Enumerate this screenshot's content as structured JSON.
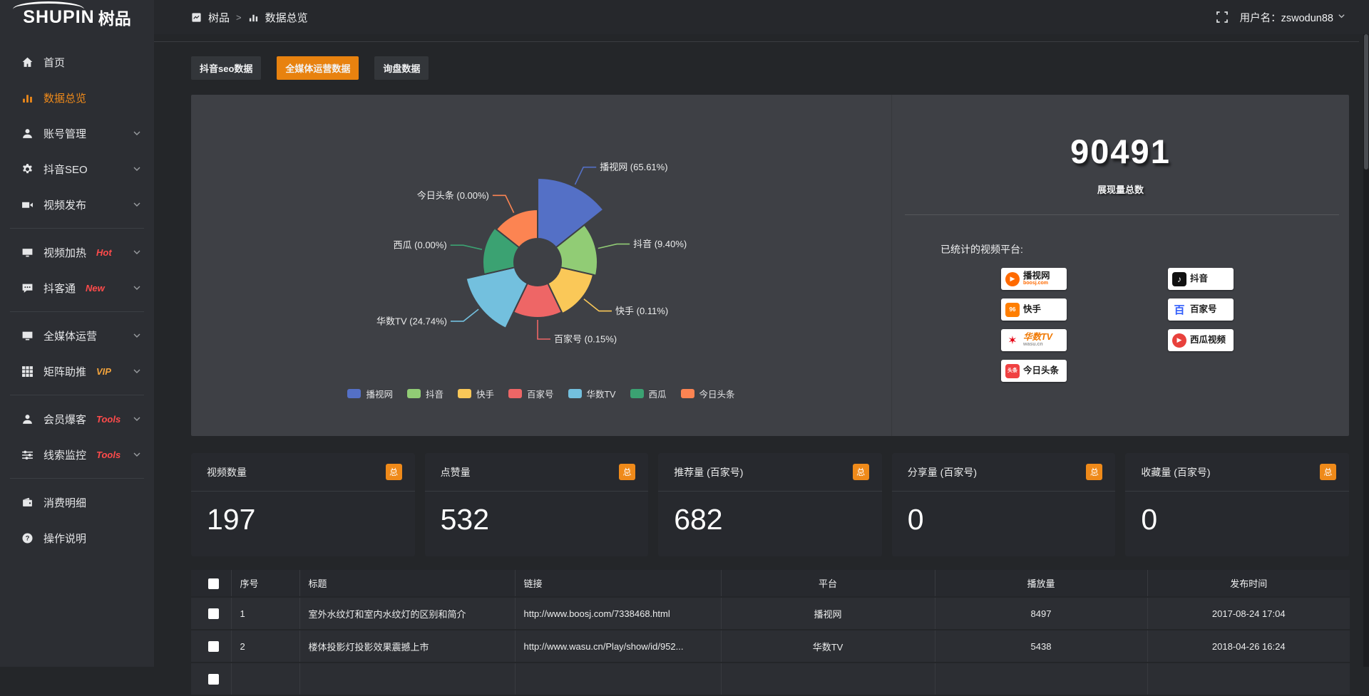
{
  "header": {
    "logo_en": "SHUPIN",
    "logo_cn": "树品",
    "breadcrumb": {
      "root": "树品",
      "separator": ">",
      "current": "数据总览"
    },
    "username": "用户名：zswodun88"
  },
  "sidebar": {
    "items": [
      {
        "key": "home",
        "icon": "home",
        "label": "首页"
      },
      {
        "key": "data-overview",
        "icon": "chart",
        "label": "数据总览",
        "active": true
      },
      {
        "key": "account-manage",
        "icon": "user",
        "label": "账号管理",
        "expandable": true
      },
      {
        "key": "douyin-seo",
        "icon": "gear",
        "label": "抖音SEO",
        "expandable": true
      },
      {
        "key": "video-publish",
        "icon": "camera",
        "label": "视频发布",
        "expandable": true
      },
      {
        "divider": true
      },
      {
        "key": "video-heat",
        "icon": "screen",
        "label": "视频加热",
        "badge": "Hot",
        "badge_color": "#ff4b4b",
        "expandable": true
      },
      {
        "key": "douketong",
        "icon": "chat",
        "label": "抖客通",
        "badge": "New",
        "badge_color": "#ff4b4b",
        "expandable": true
      },
      {
        "divider": true
      },
      {
        "key": "omni-media",
        "icon": "monitor",
        "label": "全媒体运营",
        "expandable": true
      },
      {
        "key": "matrix-boost",
        "icon": "grid",
        "label": "矩阵助推",
        "badge": "VIP",
        "badge_color": "#f2a33c",
        "expandable": true
      },
      {
        "divider": true
      },
      {
        "key": "member-burst",
        "icon": "person",
        "label": "会员爆客",
        "badge": "Tools",
        "badge_color": "#ff4b4b",
        "expandable": true
      },
      {
        "key": "clue-monitor",
        "icon": "sliders",
        "label": "线索监控",
        "badge": "Tools",
        "badge_color": "#ff4b4b",
        "expandable": true
      },
      {
        "divider": true
      },
      {
        "key": "spend-detail",
        "icon": "wallet",
        "label": "消费明细"
      },
      {
        "key": "help-doc",
        "icon": "help",
        "label": "操作说明"
      }
    ]
  },
  "tabs": [
    {
      "key": "douyin-seo-data",
      "label": "抖音seo数据"
    },
    {
      "key": "omni-media-data",
      "label": "全媒体运营数据",
      "active": true
    },
    {
      "key": "inquiry-data",
      "label": "询盘数据"
    }
  ],
  "chart_data": {
    "type": "pie",
    "rose": true,
    "equal_angle": true,
    "inner_radius": 33,
    "label_format": "{name} ({percent}%)",
    "slices": [
      {
        "name": "播视网",
        "percent": 65.61,
        "color": "#5470c6",
        "radius": 118
      },
      {
        "name": "抖音",
        "percent": 9.4,
        "color": "#91cc75",
        "radius": 84
      },
      {
        "name": "快手",
        "percent": 0.11,
        "color": "#fac858",
        "radius": 80
      },
      {
        "name": "百家号",
        "percent": 0.15,
        "color": "#ee6666",
        "radius": 78
      },
      {
        "name": "华数TV",
        "percent": 24.74,
        "color": "#73c0de",
        "radius": 103
      },
      {
        "name": "西瓜",
        "percent": 0.0,
        "color": "#3ba272",
        "radius": 77
      },
      {
        "name": "今日头条",
        "percent": 0.0,
        "color": "#fc8452",
        "radius": 74
      }
    ],
    "legend_position": "bottom"
  },
  "summary": {
    "total": "90491",
    "total_label": "展现量总数",
    "platforms_label": "已统计的视频平台:",
    "columns": [
      [
        {
          "key": "boosj",
          "name": "播视网",
          "sub": "boosj.com",
          "glyph": "▶"
        },
        {
          "key": "kuaishou",
          "name": "快手",
          "glyph": "96"
        },
        {
          "key": "wasu",
          "name": "华数TV",
          "sub": "wasu.cn",
          "glyph": "✶"
        },
        {
          "key": "toutiao",
          "name": "今日头条",
          "glyph": "头条"
        }
      ],
      [
        {
          "key": "douyin",
          "name": "抖音",
          "glyph": "♪"
        },
        {
          "key": "baijiahao",
          "name": "百家号",
          "glyph": "百"
        },
        {
          "key": "xigua",
          "name": "西瓜视频",
          "glyph": "▶"
        }
      ]
    ]
  },
  "stat_cards": [
    {
      "title": "视频数量",
      "badge": "总",
      "value": "197"
    },
    {
      "title": "点赞量",
      "badge": "总",
      "value": "532"
    },
    {
      "title": "推荐量 (百家号)",
      "badge": "总",
      "value": "682"
    },
    {
      "title": "分享量 (百家号)",
      "badge": "总",
      "value": "0"
    },
    {
      "title": "收藏量 (百家号)",
      "badge": "总",
      "value": "0"
    }
  ],
  "table": {
    "columns": [
      "序号",
      "标题",
      "链接",
      "平台",
      "播放量",
      "发布时间"
    ],
    "rows": [
      {
        "seq": "1",
        "title": "室外水纹灯和室内水纹灯的区别和简介",
        "link": "http://www.boosj.com/7338468.html",
        "platform": "播视网",
        "views": "8497",
        "time": "2017-08-24 17:04"
      },
      {
        "seq": "2",
        "title": "楼体投影灯投影效果震撼上市",
        "link": "http://www.wasu.cn/Play/show/id/952...",
        "platform": "华数TV",
        "views": "5438",
        "time": "2018-04-26 16:24"
      }
    ]
  },
  "colors": {
    "accent": "#ef8a1a",
    "active_tab": "#e8820f",
    "link": "#e0862a",
    "hot_red": "#ff4b4b",
    "vip_gold": "#f2a33c"
  }
}
